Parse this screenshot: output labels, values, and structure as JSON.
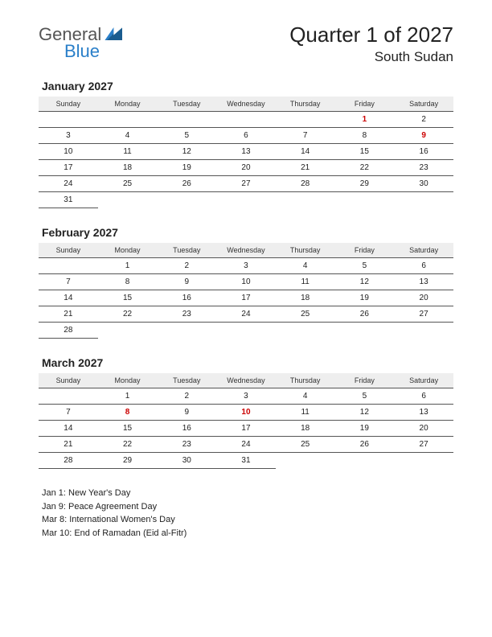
{
  "logo": {
    "line1": "General",
    "line2": "Blue"
  },
  "header": {
    "title": "Quarter 1 of 2027",
    "subtitle": "South Sudan"
  },
  "daynames": [
    "Sunday",
    "Monday",
    "Tuesday",
    "Wednesday",
    "Thursday",
    "Friday",
    "Saturday"
  ],
  "months": [
    {
      "title": "January 2027",
      "weeks": [
        [
          {
            "d": ""
          },
          {
            "d": ""
          },
          {
            "d": ""
          },
          {
            "d": ""
          },
          {
            "d": ""
          },
          {
            "d": "1",
            "h": true
          },
          {
            "d": "2"
          }
        ],
        [
          {
            "d": "3"
          },
          {
            "d": "4"
          },
          {
            "d": "5"
          },
          {
            "d": "6"
          },
          {
            "d": "7"
          },
          {
            "d": "8"
          },
          {
            "d": "9",
            "h": true
          }
        ],
        [
          {
            "d": "10"
          },
          {
            "d": "11"
          },
          {
            "d": "12"
          },
          {
            "d": "13"
          },
          {
            "d": "14"
          },
          {
            "d": "15"
          },
          {
            "d": "16"
          }
        ],
        [
          {
            "d": "17"
          },
          {
            "d": "18"
          },
          {
            "d": "19"
          },
          {
            "d": "20"
          },
          {
            "d": "21"
          },
          {
            "d": "22"
          },
          {
            "d": "23"
          }
        ],
        [
          {
            "d": "24"
          },
          {
            "d": "25"
          },
          {
            "d": "26"
          },
          {
            "d": "27"
          },
          {
            "d": "28"
          },
          {
            "d": "29"
          },
          {
            "d": "30"
          }
        ],
        [
          {
            "d": "31"
          },
          {
            "d": ""
          },
          {
            "d": ""
          },
          {
            "d": ""
          },
          {
            "d": ""
          },
          {
            "d": ""
          },
          {
            "d": ""
          }
        ]
      ]
    },
    {
      "title": "February 2027",
      "weeks": [
        [
          {
            "d": ""
          },
          {
            "d": "1"
          },
          {
            "d": "2"
          },
          {
            "d": "3"
          },
          {
            "d": "4"
          },
          {
            "d": "5"
          },
          {
            "d": "6"
          }
        ],
        [
          {
            "d": "7"
          },
          {
            "d": "8"
          },
          {
            "d": "9"
          },
          {
            "d": "10"
          },
          {
            "d": "11"
          },
          {
            "d": "12"
          },
          {
            "d": "13"
          }
        ],
        [
          {
            "d": "14"
          },
          {
            "d": "15"
          },
          {
            "d": "16"
          },
          {
            "d": "17"
          },
          {
            "d": "18"
          },
          {
            "d": "19"
          },
          {
            "d": "20"
          }
        ],
        [
          {
            "d": "21"
          },
          {
            "d": "22"
          },
          {
            "d": "23"
          },
          {
            "d": "24"
          },
          {
            "d": "25"
          },
          {
            "d": "26"
          },
          {
            "d": "27"
          }
        ],
        [
          {
            "d": "28"
          },
          {
            "d": ""
          },
          {
            "d": ""
          },
          {
            "d": ""
          },
          {
            "d": ""
          },
          {
            "d": ""
          },
          {
            "d": ""
          }
        ]
      ]
    },
    {
      "title": "March 2027",
      "weeks": [
        [
          {
            "d": ""
          },
          {
            "d": "1"
          },
          {
            "d": "2"
          },
          {
            "d": "3"
          },
          {
            "d": "4"
          },
          {
            "d": "5"
          },
          {
            "d": "6"
          }
        ],
        [
          {
            "d": "7"
          },
          {
            "d": "8",
            "h": true
          },
          {
            "d": "9"
          },
          {
            "d": "10",
            "h": true
          },
          {
            "d": "11"
          },
          {
            "d": "12"
          },
          {
            "d": "13"
          }
        ],
        [
          {
            "d": "14"
          },
          {
            "d": "15"
          },
          {
            "d": "16"
          },
          {
            "d": "17"
          },
          {
            "d": "18"
          },
          {
            "d": "19"
          },
          {
            "d": "20"
          }
        ],
        [
          {
            "d": "21"
          },
          {
            "d": "22"
          },
          {
            "d": "23"
          },
          {
            "d": "24"
          },
          {
            "d": "25"
          },
          {
            "d": "26"
          },
          {
            "d": "27"
          }
        ],
        [
          {
            "d": "28"
          },
          {
            "d": "29"
          },
          {
            "d": "30"
          },
          {
            "d": "31"
          },
          {
            "d": ""
          },
          {
            "d": ""
          },
          {
            "d": ""
          }
        ]
      ]
    }
  ],
  "holidays": [
    "Jan 1: New Year's Day",
    "Jan 9: Peace Agreement Day",
    "Mar 8: International Women's Day",
    "Mar 10: End of Ramadan (Eid al-Fitr)"
  ]
}
